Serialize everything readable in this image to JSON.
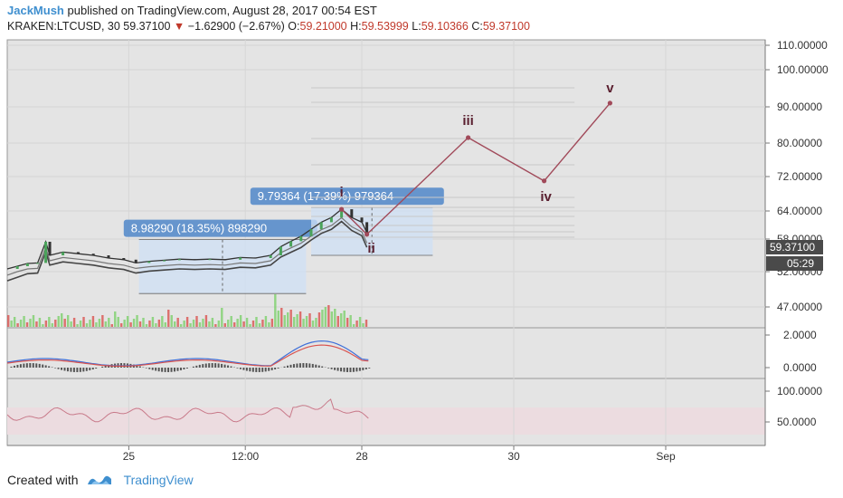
{
  "header": {
    "author": "JackMush",
    "published_text": "published on TradingView.com, August 28, 2017 00:54 EST",
    "symbol": "KRAKEN:LTCUSD, 30",
    "last_price": "59.37100",
    "change_arrow": "▼",
    "change": "−1.62900 (−2.67%)",
    "open_label": "O:",
    "open": "59.21000",
    "high_label": "H:",
    "high": "59.53999",
    "low_label": "L:",
    "low": "59.10366",
    "close_label": "C:",
    "close": "59.37100"
  },
  "colors": {
    "panel_bg": "#e4e4e4",
    "wave_line": "#a14a5a",
    "wave_label": "#5a1f2f",
    "measure_box": "#cfe0f5",
    "measure_label_bg": "#5b8ecb",
    "price_tag": "#4a4a4a",
    "rsi_band": "#ecdce0",
    "brand": "#3f8fcf"
  },
  "chart_data": {
    "type": "line",
    "symbol": "KRAKEN:LTCUSD",
    "price_axis_ticks": [
      "110.00000",
      "100.00000",
      "90.00000",
      "80.00000",
      "72.00000",
      "64.00000",
      "58.00000",
      "52.00000",
      "47.00000"
    ],
    "price_axis_values": [
      110,
      100,
      90,
      80,
      72,
      64,
      58,
      52,
      47
    ],
    "current_price_tag": "59.37100",
    "countdown_tag": "05:29",
    "macd_axis_ticks": [
      "2.0000",
      "0.0000"
    ],
    "rsi_axis_ticks": [
      "100.0000",
      "50.0000"
    ],
    "time_axis_ticks": [
      "25",
      "12:00",
      "28",
      "30",
      "Sep"
    ],
    "price_series": [
      {
        "t": 0,
        "p": 52.5
      },
      {
        "t": 0.1,
        "p": 53.0
      },
      {
        "t": 0.2,
        "p": 53.5
      },
      {
        "t": 0.3,
        "p": 53.6
      },
      {
        "t": 0.38,
        "p": 57.5
      },
      {
        "t": 0.42,
        "p": 55.0
      },
      {
        "t": 0.55,
        "p": 55.6
      },
      {
        "t": 0.7,
        "p": 55.3
      },
      {
        "t": 0.85,
        "p": 55.0
      },
      {
        "t": 1.0,
        "p": 54.5
      },
      {
        "t": 1.15,
        "p": 54.2
      },
      {
        "t": 1.27,
        "p": 53.6
      },
      {
        "t": 1.4,
        "p": 53.9
      },
      {
        "t": 1.55,
        "p": 54.1
      },
      {
        "t": 1.7,
        "p": 54.3
      },
      {
        "t": 1.85,
        "p": 54.2
      },
      {
        "t": 2.0,
        "p": 54.3
      },
      {
        "t": 2.15,
        "p": 54.2
      },
      {
        "t": 2.3,
        "p": 54.6
      },
      {
        "t": 2.45,
        "p": 54.5
      },
      {
        "t": 2.6,
        "p": 55.0
      },
      {
        "t": 2.7,
        "p": 56.6
      },
      {
        "t": 2.8,
        "p": 57.6
      },
      {
        "t": 2.9,
        "p": 58.6
      },
      {
        "t": 3.0,
        "p": 60.1
      },
      {
        "t": 3.1,
        "p": 61.6
      },
      {
        "t": 3.2,
        "p": 62.6
      },
      {
        "t": 3.3,
        "p": 64.4
      },
      {
        "t": 3.4,
        "p": 62.6
      },
      {
        "t": 3.5,
        "p": 61.6
      },
      {
        "t": 3.55,
        "p": 59.4
      }
    ],
    "elliott_wave": {
      "labels": [
        "i",
        "ii",
        "iii",
        "iv",
        "v"
      ],
      "points": [
        {
          "label": "i",
          "t": 3.3,
          "p": 64.4
        },
        {
          "label": "ii",
          "t": 3.55,
          "p": 59.0
        },
        {
          "label": "iii",
          "t": 4.55,
          "p": 81.5
        },
        {
          "label": "iv",
          "t": 5.3,
          "p": 71.0
        },
        {
          "label": "v",
          "t": 5.95,
          "p": 91.0
        }
      ]
    },
    "measurements": [
      {
        "text": "8.98290 (18.35%) 898290",
        "from": 48.9,
        "to": 57.9
      },
      {
        "text": "9.79364 (17.39%) 979364",
        "from": 55.0,
        "to": 64.8
      }
    ],
    "macd": {
      "macd_peak": 1.9,
      "signal_peak": 1.7
    },
    "rsi": {
      "level_high": 70,
      "level_low": 30,
      "last": 48
    }
  },
  "footer": {
    "created_with": "Created with",
    "brand": "TradingView"
  }
}
